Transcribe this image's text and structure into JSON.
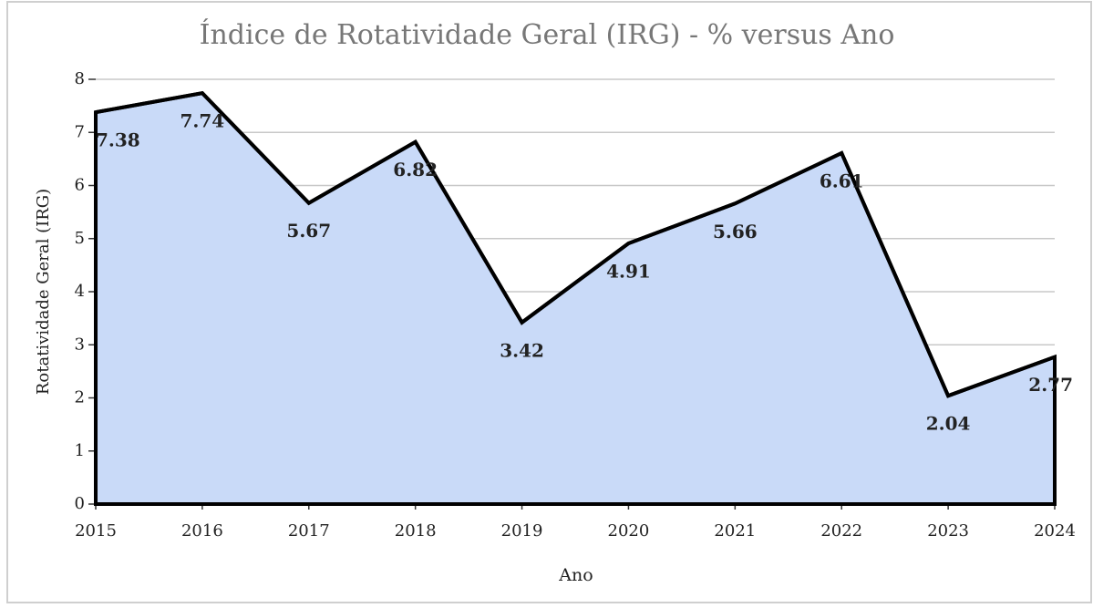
{
  "chart_data": {
    "type": "area",
    "title": "Índice de Rotatividade Geral (IRG) - % versus Ano",
    "x_label": "Ano",
    "y_label": "Rotatividade Geral (IRG)",
    "x": [
      2015,
      2016,
      2017,
      2018,
      2019,
      2020,
      2021,
      2022,
      2023,
      2024
    ],
    "values": [
      7.38,
      7.74,
      5.67,
      6.82,
      3.42,
      4.91,
      5.66,
      6.61,
      2.04,
      2.77
    ],
    "xlim": [
      2015,
      2024
    ],
    "xticks": [
      2015,
      2016,
      2017,
      2018,
      2019,
      2020,
      2021,
      2022,
      2023,
      2024
    ],
    "ylim": [
      0,
      8
    ],
    "yticks": [
      0,
      1,
      2,
      3,
      4,
      5,
      6,
      7,
      8
    ],
    "color": "#c9daf8",
    "line_color": "#000000",
    "grid": true
  }
}
